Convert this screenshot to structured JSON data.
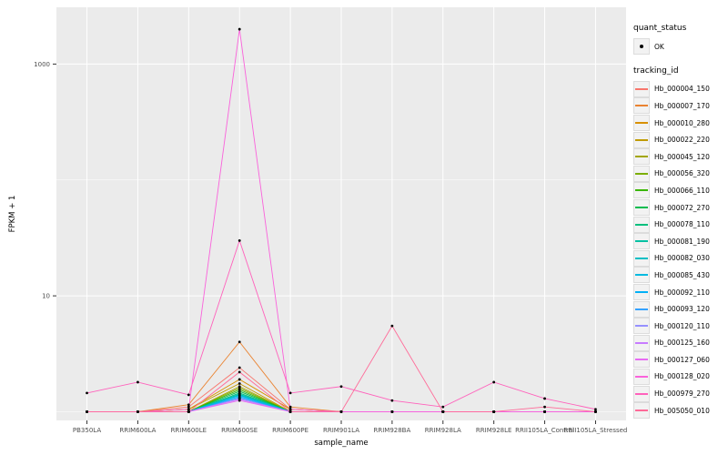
{
  "chart_data": {
    "type": "line",
    "title": "",
    "xlabel": "sample_name",
    "ylabel": "FPKM + 1",
    "yscale": "log10",
    "ylim": [
      0.84,
      3100
    ],
    "y_major_ticks": [
      10,
      1000
    ],
    "y_tick_labels": [
      "10",
      "1000"
    ],
    "y_minor_gridlines": [
      1,
      100
    ],
    "panel_background": "#EBEBEB",
    "gridline_color": "#FFFFFF",
    "point_marker": {
      "shape": "point",
      "color": "#000000"
    },
    "legend_position": "right",
    "x": [
      "PB350LA",
      "RRIM600LA",
      "RRIM600LE",
      "RRIM600SE",
      "RRIM600PE",
      "RRIM901LA",
      "RRIM928BA",
      "RRIM928LA",
      "RRIM928LE",
      "RRII105LA_Control",
      "RRII105LA_Stressed"
    ],
    "series": [
      {
        "name": "Hb_000004_150",
        "color": "#F8766D",
        "values": [
          1,
          1,
          1.1,
          2.4,
          1.05,
          1,
          1,
          1,
          1,
          1,
          1
        ]
      },
      {
        "name": "Hb_000007_170",
        "color": "#EA8331",
        "values": [
          1,
          1,
          1.15,
          4.0,
          1.1,
          1,
          1,
          1,
          1,
          1,
          1
        ]
      },
      {
        "name": "Hb_000010_280",
        "color": "#D89000",
        "values": [
          1,
          1,
          1.05,
          1.9,
          1.05,
          1,
          1,
          1,
          1,
          1,
          1
        ]
      },
      {
        "name": "Hb_000022_220",
        "color": "#C09B00",
        "values": [
          1,
          1,
          1.05,
          1.75,
          1,
          1,
          1,
          1,
          1,
          1,
          1
        ]
      },
      {
        "name": "Hb_000045_120",
        "color": "#A3A500",
        "values": [
          1,
          1,
          1,
          1.65,
          1,
          1,
          1,
          1,
          1,
          1,
          1
        ]
      },
      {
        "name": "Hb_000056_320",
        "color": "#7CAE00",
        "values": [
          1,
          1,
          1,
          1.6,
          1,
          1,
          1,
          1,
          1,
          1,
          1
        ]
      },
      {
        "name": "Hb_000066_110",
        "color": "#39B600",
        "values": [
          1,
          1,
          1,
          1.55,
          1,
          1,
          1,
          1,
          1,
          1,
          1
        ]
      },
      {
        "name": "Hb_000072_270",
        "color": "#00BB4E",
        "values": [
          1,
          1,
          1,
          1.5,
          1,
          1,
          1,
          1,
          1,
          1,
          1
        ]
      },
      {
        "name": "Hb_000078_110",
        "color": "#00BF7D",
        "values": [
          1,
          1,
          1,
          1.45,
          1,
          1,
          1,
          1,
          1,
          1,
          1
        ]
      },
      {
        "name": "Hb_000081_190",
        "color": "#00C1A3",
        "values": [
          1,
          1,
          1,
          1.42,
          1,
          1,
          1,
          1,
          1,
          1,
          1
        ]
      },
      {
        "name": "Hb_000082_030",
        "color": "#00BFC4",
        "values": [
          1,
          1,
          1,
          1.4,
          1,
          1,
          1,
          1,
          1,
          1,
          1
        ]
      },
      {
        "name": "Hb_000085_430",
        "color": "#00BAE0",
        "values": [
          1,
          1,
          1,
          1.38,
          1,
          1,
          1,
          1,
          1,
          1,
          1
        ]
      },
      {
        "name": "Hb_000092_110",
        "color": "#00B0F6",
        "values": [
          1,
          1,
          1,
          1.35,
          1,
          1,
          1,
          1,
          1,
          1,
          1
        ]
      },
      {
        "name": "Hb_000093_120",
        "color": "#35A2FF",
        "values": [
          1,
          1,
          1,
          1.32,
          1,
          1,
          1,
          1,
          1,
          1,
          1
        ]
      },
      {
        "name": "Hb_000120_110",
        "color": "#9590FF",
        "values": [
          1,
          1,
          1,
          1.3,
          1,
          1,
          1,
          1,
          1,
          1,
          1
        ]
      },
      {
        "name": "Hb_000125_160",
        "color": "#C77CFF",
        "values": [
          1,
          1,
          1,
          1.28,
          1,
          1,
          1,
          1,
          1,
          1,
          1
        ]
      },
      {
        "name": "Hb_000127_060",
        "color": "#E76BF3",
        "values": [
          1,
          1,
          1,
          1.25,
          1,
          1,
          1,
          1,
          1,
          1,
          1
        ]
      },
      {
        "name": "Hb_000128_020",
        "color": "#FA62DB",
        "values": [
          1,
          1,
          1.05,
          2000,
          1.05,
          1,
          1,
          1,
          1,
          1,
          1
        ]
      },
      {
        "name": "Hb_000979_270",
        "color": "#FF62BC",
        "values": [
          1.45,
          1.8,
          1.4,
          30,
          1.45,
          1.65,
          1.25,
          1.1,
          1.8,
          1.3,
          1.05
        ]
      },
      {
        "name": "Hb_005050_010",
        "color": "#FF6A98",
        "values": [
          1,
          1,
          1,
          2.2,
          1,
          1,
          5.5,
          1,
          1,
          1.1,
          1
        ]
      }
    ]
  },
  "legend": {
    "quant_status": {
      "title": "quant_status",
      "items": [
        {
          "label": "OK",
          "marker": "black-point"
        }
      ]
    },
    "tracking_id": {
      "title": "tracking_id"
    }
  }
}
